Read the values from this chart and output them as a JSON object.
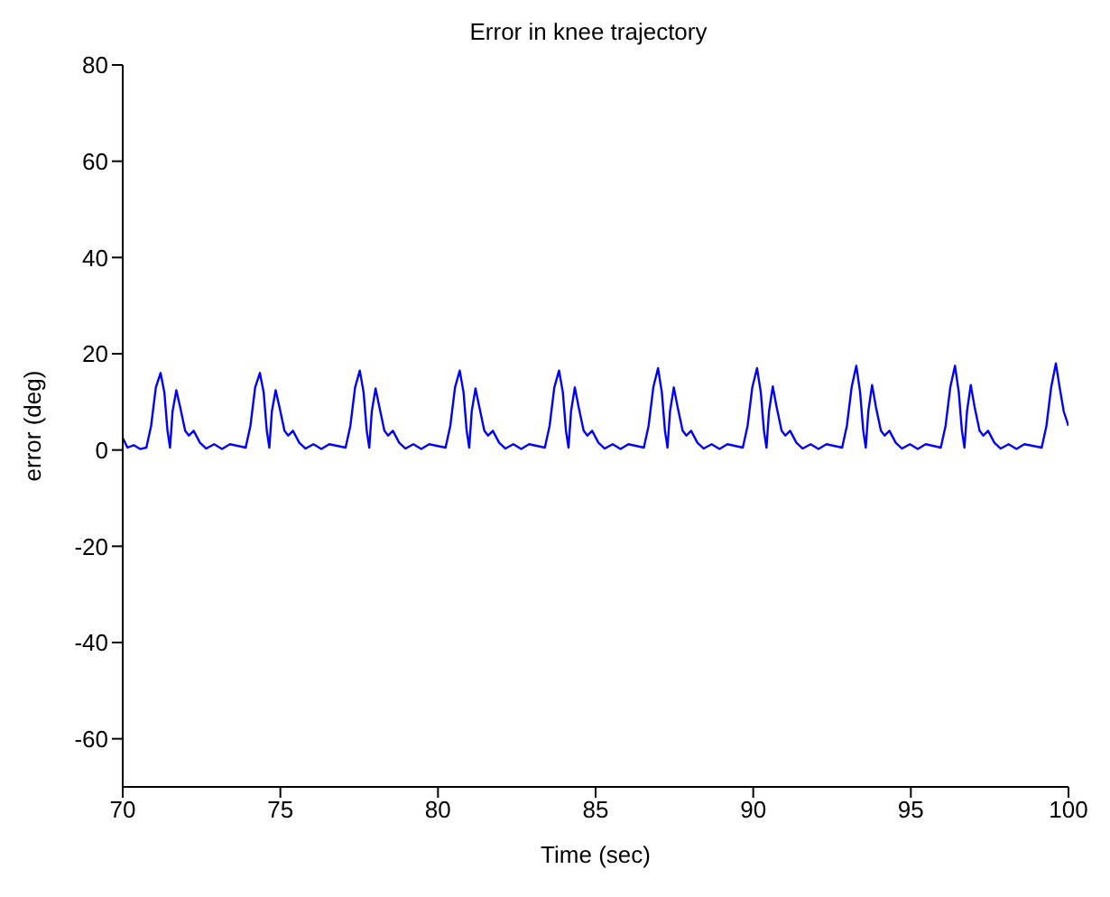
{
  "chart_data": {
    "type": "line",
    "title": "Error in knee trajectory",
    "xlabel": "Time (sec)",
    "ylabel": "error (deg)",
    "xlim": [
      70,
      100
    ],
    "xticks": [
      70,
      75,
      80,
      85,
      90,
      95,
      100
    ],
    "ylim": [
      -70,
      80
    ],
    "yticks": [
      -60,
      -40,
      -20,
      0,
      20,
      40,
      60,
      80
    ],
    "grid": false,
    "legend": false,
    "marker": "none",
    "line_style": "solid",
    "x": [
      70,
      70.15,
      70.35,
      70.55,
      70.75,
      70.9,
      71.05,
      71.2,
      71.32,
      71.42,
      71.5,
      71.58,
      71.7,
      71.82,
      71.98,
      72.1,
      72.25,
      72.45,
      72.65,
      72.9,
      73.15,
      73.4,
      73.9,
      74.05,
      74.2,
      74.35,
      74.47,
      74.57,
      74.65,
      74.73,
      74.85,
      74.97,
      75.13,
      75.25,
      75.4,
      75.6,
      75.8,
      76.05,
      76.3,
      76.55,
      77.07,
      77.22,
      77.37,
      77.52,
      77.64,
      77.74,
      77.82,
      77.9,
      78.02,
      78.14,
      78.3,
      78.42,
      78.57,
      78.77,
      78.97,
      79.22,
      79.47,
      79.72,
      80.24,
      80.39,
      80.54,
      80.69,
      80.81,
      80.91,
      80.99,
      81.07,
      81.19,
      81.31,
      81.47,
      81.59,
      81.74,
      81.94,
      82.14,
      82.39,
      82.64,
      82.89,
      83.39,
      83.54,
      83.69,
      83.84,
      83.96,
      84.06,
      84.14,
      84.22,
      84.34,
      84.46,
      84.62,
      84.74,
      84.89,
      85.09,
      85.29,
      85.54,
      85.79,
      86.04,
      86.53,
      86.68,
      86.83,
      86.98,
      87.1,
      87.2,
      87.28,
      87.36,
      87.48,
      87.6,
      87.76,
      87.88,
      88.03,
      88.23,
      88.43,
      88.68,
      88.93,
      89.18,
      89.67,
      89.82,
      89.97,
      90.12,
      90.24,
      90.34,
      90.42,
      90.5,
      90.62,
      90.74,
      90.9,
      91.02,
      91.17,
      91.37,
      91.57,
      91.82,
      92.07,
      92.32,
      92.82,
      92.97,
      93.12,
      93.27,
      93.39,
      93.49,
      93.57,
      93.65,
      93.77,
      93.89,
      94.05,
      94.17,
      94.32,
      94.52,
      94.72,
      94.97,
      95.22,
      95.47,
      95.95,
      96.1,
      96.25,
      96.4,
      96.52,
      96.62,
      96.7,
      96.78,
      96.9,
      97.02,
      97.18,
      97.3,
      97.45,
      97.65,
      97.85,
      98.1,
      98.35,
      98.6,
      99.15,
      99.3,
      99.45,
      99.6,
      99.72,
      99.85,
      100
    ],
    "series": [
      {
        "color": "#0000ff",
        "values": [
          2.5,
          0.5,
          1,
          0.2,
          0.5,
          5,
          13,
          16,
          12,
          4,
          0.5,
          8,
          12.4,
          9,
          4,
          3,
          4,
          1.5,
          0.3,
          1.2,
          0.2,
          1.2,
          0.5,
          5,
          13,
          16,
          12,
          4,
          0.5,
          8,
          12.4,
          9,
          4,
          3,
          4,
          1.5,
          0.3,
          1.2,
          0.2,
          1.2,
          0.5,
          5,
          13,
          16.5,
          12,
          4,
          0.5,
          8,
          12.8,
          9,
          4,
          3,
          4,
          1.5,
          0.3,
          1.2,
          0.2,
          1.2,
          0.5,
          5,
          13,
          16.5,
          12,
          4,
          0.5,
          8,
          12.8,
          9,
          4,
          3,
          4,
          1.5,
          0.3,
          1.2,
          0.2,
          1.2,
          0.5,
          5,
          13,
          16.5,
          12,
          4,
          0.5,
          8,
          13,
          9,
          4,
          3,
          4,
          1.5,
          0.3,
          1.2,
          0.2,
          1.2,
          0.5,
          5,
          13,
          17,
          12,
          4,
          0.5,
          8,
          13,
          9,
          4,
          3,
          4,
          1.5,
          0.3,
          1.2,
          0.2,
          1.2,
          0.5,
          5,
          13,
          17,
          12,
          4,
          0.5,
          8,
          13.2,
          9,
          4,
          3,
          4,
          1.5,
          0.3,
          1.2,
          0.2,
          1.2,
          0.5,
          5,
          13,
          17.5,
          12,
          4,
          0.5,
          8,
          13.5,
          9,
          4,
          3,
          4,
          1.5,
          0.3,
          1.2,
          0.2,
          1.2,
          0.5,
          5,
          13,
          17.5,
          12,
          4,
          0.5,
          8,
          13.5,
          9,
          4,
          3,
          4,
          1.5,
          0.3,
          1.2,
          0.2,
          1.2,
          0.5,
          5,
          13,
          18,
          13,
          8,
          5
        ]
      }
    ]
  }
}
